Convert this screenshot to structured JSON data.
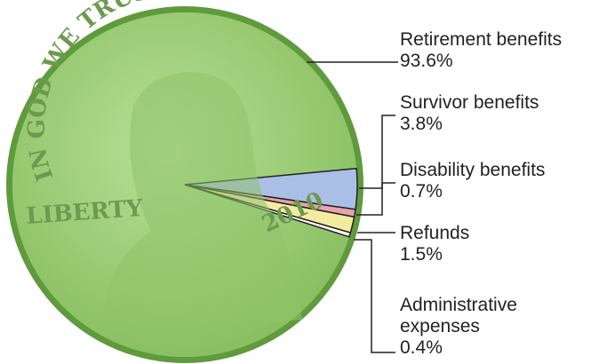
{
  "chart_data": {
    "type": "pie",
    "categories": [
      "Retirement benefits",
      "Survivor benefits",
      "Disability benefits",
      "Refunds",
      "Administrative expenses"
    ],
    "values": [
      93.6,
      3.8,
      0.7,
      1.5,
      0.4
    ],
    "value_labels": [
      "93.6%",
      "3.8%",
      "0.7%",
      "1.5%",
      "0.4%"
    ],
    "colors": [
      "#9ccf78",
      "#a9bfe6",
      "#e9a3ad",
      "#f3eba0",
      "#ffffff"
    ]
  },
  "coin_inscriptions": [
    "IN GOD WE TRUST",
    "LIBERTY",
    "2010"
  ]
}
